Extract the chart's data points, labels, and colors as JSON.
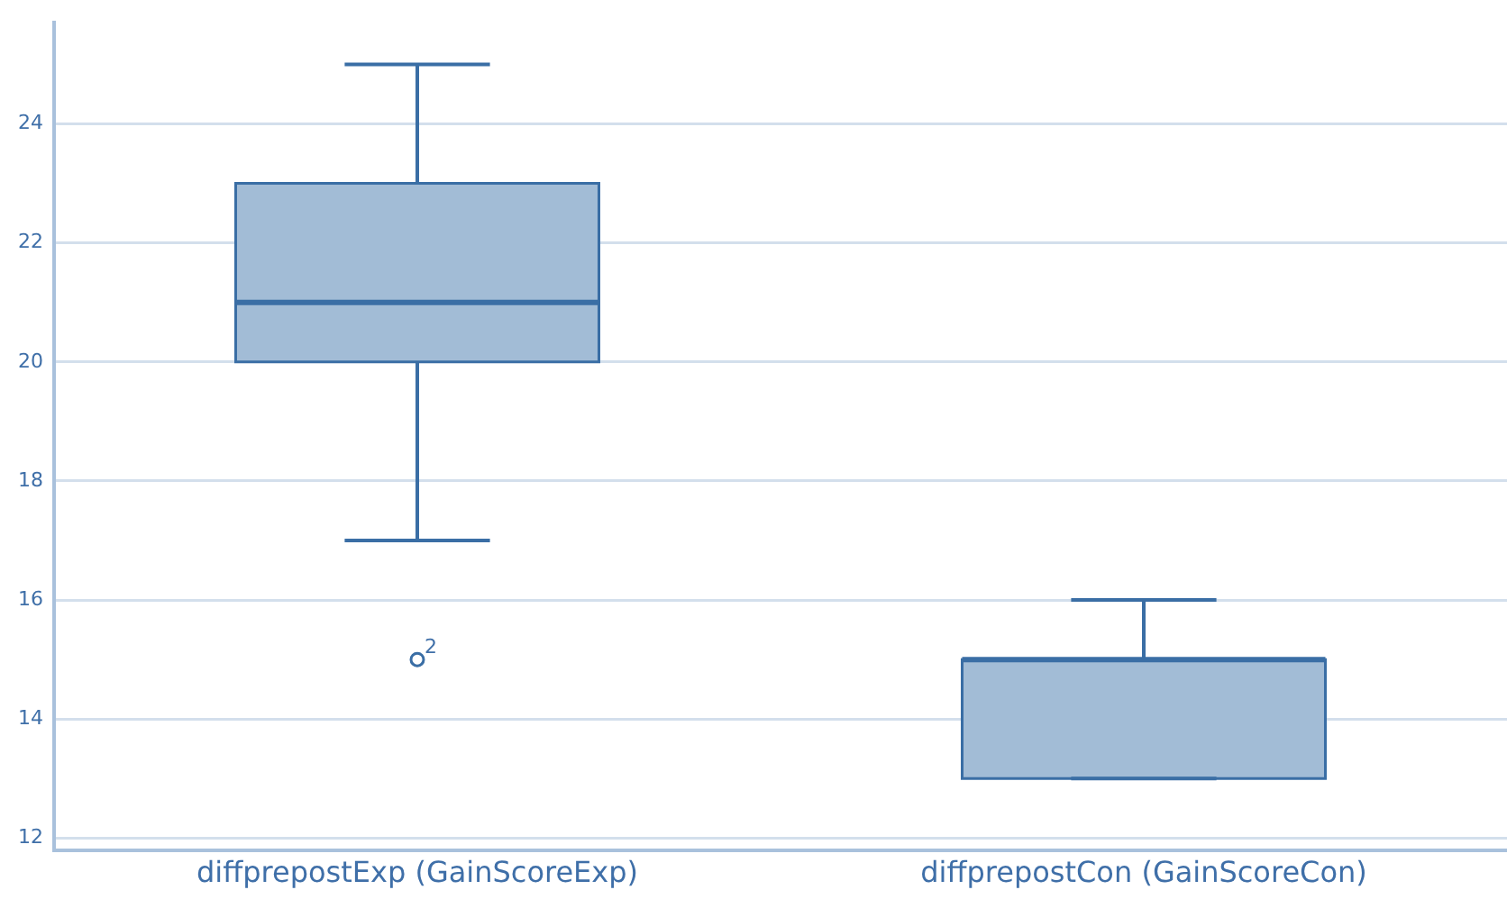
{
  "chart_data": {
    "type": "box",
    "categories": [
      "diffprepostExp (GainScoreExp)",
      "diffprepostCon (GainScoreCon)"
    ],
    "boxes": [
      {
        "low": 17,
        "q1": 20,
        "median": 21,
        "q3": 23,
        "high": 25,
        "outliers": [
          15
        ]
      },
      {
        "low": 13,
        "q1": 13,
        "median": 15,
        "q3": 15,
        "high": 16
      }
    ],
    "color": "#a2bcd6",
    "ylim": [
      11.8,
      25.7
    ],
    "yticks": [
      12,
      14,
      16,
      18,
      20,
      22,
      24
    ],
    "grid": "y",
    "legend": false,
    "annotations": [
      "2"
    ]
  }
}
